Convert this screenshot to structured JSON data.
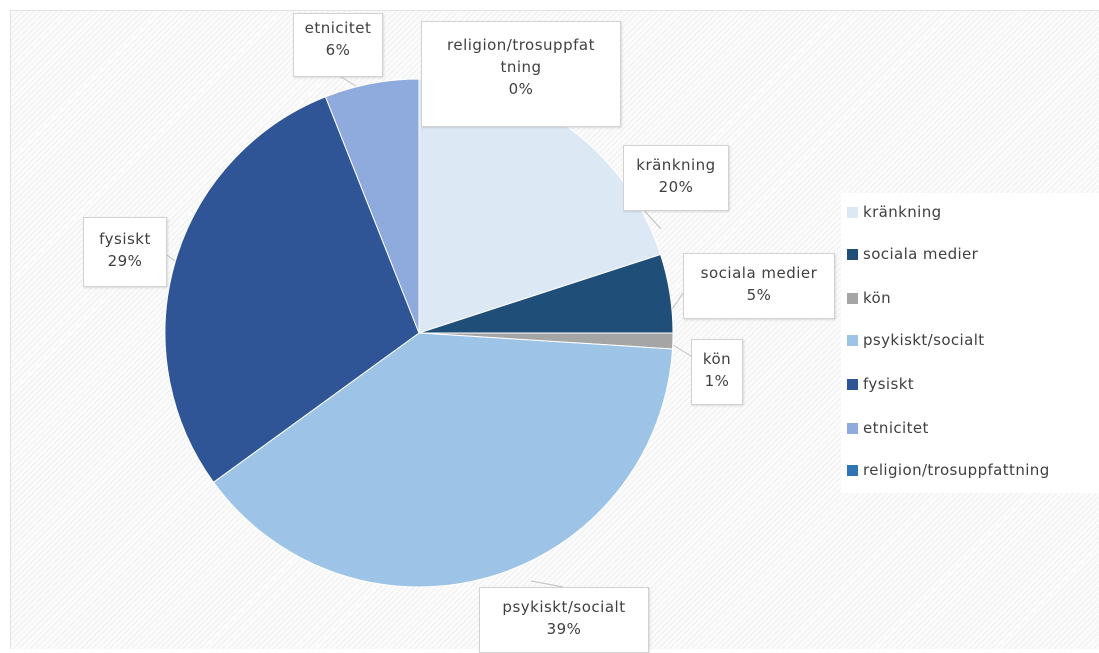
{
  "chart_data": {
    "type": "pie",
    "title": "",
    "legend_position": "right",
    "slices": [
      {
        "label": "kränkning",
        "value": 20,
        "value_label": "20%",
        "color": "#dde8f5"
      },
      {
        "label": "sociala medier",
        "value": 5,
        "value_label": "5%",
        "color": "#1f4e79"
      },
      {
        "label": "kön",
        "value": 1,
        "value_label": "1%",
        "color": "#a5a5a5"
      },
      {
        "label": "psykiskt/socialt",
        "value": 39,
        "value_label": "39%",
        "color": "#9dc3e6"
      },
      {
        "label": "fysiskt",
        "value": 29,
        "value_label": "29%",
        "color": "#2f5597"
      },
      {
        "label": "etnicitet",
        "value": 6,
        "value_label": "6%",
        "color": "#8faadc"
      },
      {
        "label": "religion/trosuppfattning",
        "value": 0,
        "value_label": "0%",
        "color": "#2e75b6"
      }
    ],
    "data_labels": {
      "kranking": {
        "line1": "kränkning",
        "line2": "20%"
      },
      "sociala_medier": {
        "line1": "sociala medier",
        "line2": "5%"
      },
      "kon": {
        "line1": "kön",
        "line2": "1%"
      },
      "psykiskt": {
        "line1": "psykiskt/socialt",
        "line2": "39%"
      },
      "fysiskt": {
        "line1": "fysiskt",
        "line2": "29%"
      },
      "etnicitet": {
        "line1": "etnicitet",
        "line2": "6%"
      },
      "religion": {
        "line1": "religion/trosuppfat",
        "line1b": "tning",
        "line2": "0%"
      }
    }
  }
}
